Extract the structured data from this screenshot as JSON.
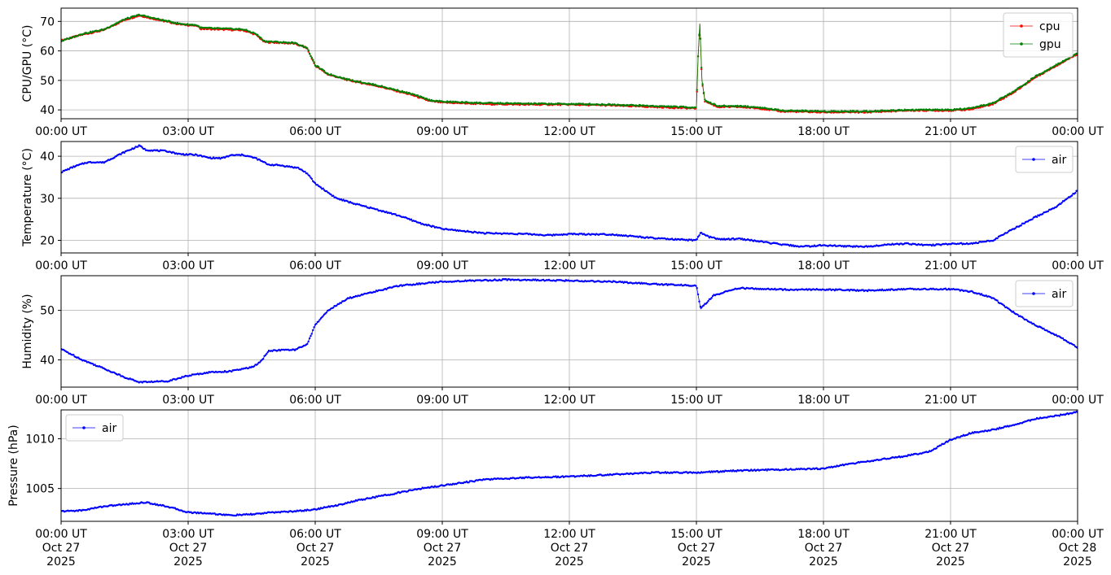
{
  "chart_data": [
    {
      "type": "line",
      "ylabel": "CPU/GPU (°C)",
      "ylim": [
        37,
        74.5
      ],
      "yticks": [
        40,
        50,
        60,
        70
      ],
      "xlim": [
        0,
        24
      ],
      "xticks": [
        0,
        3,
        6,
        9,
        12,
        15,
        18,
        21,
        24
      ],
      "xtick_labels": [
        "00:00 UT",
        "03:00 UT",
        "06:00 UT",
        "09:00 UT",
        "12:00 UT",
        "15:00 UT",
        "18:00 UT",
        "21:00 UT",
        "00:00 UT"
      ],
      "grid": true,
      "legend_position": "upper right",
      "series": [
        {
          "name": "cpu",
          "color": "#ff0000",
          "points": [
            [
              0,
              63.5
            ],
            [
              0.5,
              65.5
            ],
            [
              1,
              67
            ],
            [
              1.5,
              70.5
            ],
            [
              1.85,
              72
            ],
            [
              2.3,
              70.5
            ],
            [
              2.8,
              69
            ],
            [
              3.2,
              68.5
            ],
            [
              3.3,
              67.5
            ],
            [
              4.3,
              67
            ],
            [
              4.6,
              65.5
            ],
            [
              4.8,
              63
            ],
            [
              5.1,
              62.8
            ],
            [
              5.5,
              62.5
            ],
            [
              5.8,
              61
            ],
            [
              6,
              55
            ],
            [
              6.3,
              52
            ],
            [
              6.8,
              50
            ],
            [
              7.5,
              48
            ],
            [
              8.3,
              45
            ],
            [
              8.7,
              43
            ],
            [
              9,
              42.5
            ],
            [
              10,
              42
            ],
            [
              11,
              41.8
            ],
            [
              12,
              41.8
            ],
            [
              13,
              41.5
            ],
            [
              14,
              41
            ],
            [
              15,
              40.5
            ],
            [
              15.04,
              58
            ],
            [
              15.08,
              69
            ],
            [
              15.13,
              50
            ],
            [
              15.2,
              43
            ],
            [
              15.5,
              41
            ],
            [
              16,
              41
            ],
            [
              16.5,
              40.5
            ],
            [
              17,
              39.5
            ],
            [
              18,
              39.2
            ],
            [
              19,
              39.2
            ],
            [
              20,
              39.8
            ],
            [
              21,
              39.8
            ],
            [
              21.5,
              40.2
            ],
            [
              22,
              42
            ],
            [
              22.5,
              46
            ],
            [
              23,
              51
            ],
            [
              23.5,
              55
            ],
            [
              24,
              59
            ]
          ]
        },
        {
          "name": "gpu",
          "color": "#008000",
          "points": [
            [
              0,
              63.3
            ],
            [
              0.5,
              65.8
            ],
            [
              1,
              67.2
            ],
            [
              1.5,
              70.7
            ],
            [
              1.85,
              72.2
            ],
            [
              2.3,
              70.7
            ],
            [
              2.8,
              69.2
            ],
            [
              3.2,
              68.7
            ],
            [
              3.3,
              67.8
            ],
            [
              4.3,
              67.3
            ],
            [
              4.6,
              65.8
            ],
            [
              4.8,
              63.3
            ],
            [
              5.1,
              63
            ],
            [
              5.5,
              62.7
            ],
            [
              5.8,
              61.2
            ],
            [
              6,
              55.2
            ],
            [
              6.3,
              52.2
            ],
            [
              6.8,
              50.2
            ],
            [
              7.5,
              48.2
            ],
            [
              8.3,
              45.3
            ],
            [
              8.7,
              43.3
            ],
            [
              9,
              42.8
            ],
            [
              10,
              42.3
            ],
            [
              11,
              42.1
            ],
            [
              12,
              42
            ],
            [
              13,
              41.8
            ],
            [
              14,
              41.3
            ],
            [
              15,
              40.8
            ],
            [
              15.04,
              58.3
            ],
            [
              15.08,
              69.3
            ],
            [
              15.13,
              50.3
            ],
            [
              15.2,
              43.3
            ],
            [
              15.5,
              41.3
            ],
            [
              16,
              41.3
            ],
            [
              16.5,
              40.8
            ],
            [
              17,
              39.8
            ],
            [
              18,
              39.5
            ],
            [
              19,
              39.5
            ],
            [
              20,
              40
            ],
            [
              21,
              40
            ],
            [
              21.5,
              40.5
            ],
            [
              22,
              42.3
            ],
            [
              22.5,
              46.3
            ],
            [
              23,
              51.3
            ],
            [
              23.5,
              55.3
            ],
            [
              24,
              59.2
            ]
          ]
        }
      ]
    },
    {
      "type": "line",
      "ylabel": "Temperature (°C)",
      "ylim": [
        17,
        43.5
      ],
      "yticks": [
        20,
        30,
        40
      ],
      "xlim": [
        0,
        24
      ],
      "xticks": [
        0,
        3,
        6,
        9,
        12,
        15,
        18,
        21,
        24
      ],
      "xtick_labels": [
        "00:00 UT",
        "03:00 UT",
        "06:00 UT",
        "09:00 UT",
        "12:00 UT",
        "15:00 UT",
        "18:00 UT",
        "21:00 UT",
        "00:00 UT"
      ],
      "grid": true,
      "legend_position": "upper right",
      "series": [
        {
          "name": "air",
          "color": "#0000ff",
          "points": [
            [
              0,
              36.2
            ],
            [
              0.3,
              37.5
            ],
            [
              0.6,
              38.5
            ],
            [
              0.8,
              38.6
            ],
            [
              1,
              38.5
            ],
            [
              1.2,
              39.5
            ],
            [
              1.5,
              41
            ],
            [
              1.85,
              42.5
            ],
            [
              2,
              41.5
            ],
            [
              2.5,
              41.2
            ],
            [
              2.8,
              40.5
            ],
            [
              3.2,
              40.3
            ],
            [
              3.5,
              39.6
            ],
            [
              3.8,
              39.5
            ],
            [
              4,
              40.2
            ],
            [
              4.3,
              40.3
            ],
            [
              4.6,
              39.5
            ],
            [
              4.9,
              38
            ],
            [
              5.2,
              37.8
            ],
            [
              5.6,
              37.2
            ],
            [
              5.8,
              36
            ],
            [
              6,
              33.5
            ],
            [
              6.5,
              30
            ],
            [
              7,
              28.5
            ],
            [
              7.5,
              27.2
            ],
            [
              8,
              25.8
            ],
            [
              8.5,
              24
            ],
            [
              9,
              22.7
            ],
            [
              10,
              21.7
            ],
            [
              11,
              21.5
            ],
            [
              11.5,
              21.2
            ],
            [
              12,
              21.5
            ],
            [
              13,
              21.4
            ],
            [
              14,
              20.5
            ],
            [
              14.5,
              20.2
            ],
            [
              15,
              20
            ],
            [
              15.1,
              21.8
            ],
            [
              15.3,
              20.8
            ],
            [
              15.6,
              20.2
            ],
            [
              16,
              20.4
            ],
            [
              16.3,
              20
            ],
            [
              17,
              19
            ],
            [
              17.5,
              18.5
            ],
            [
              18,
              18.8
            ],
            [
              18.5,
              18.6
            ],
            [
              19,
              18.5
            ],
            [
              19.5,
              19
            ],
            [
              20,
              19.2
            ],
            [
              20.5,
              18.8
            ],
            [
              21,
              19.2
            ],
            [
              21.5,
              19.2
            ],
            [
              22,
              20
            ],
            [
              22.5,
              22.8
            ],
            [
              23,
              25.5
            ],
            [
              23.5,
              28
            ],
            [
              24,
              31.8
            ]
          ]
        }
      ]
    },
    {
      "type": "line",
      "ylabel": "Humidity (%)",
      "ylim": [
        34.5,
        57
      ],
      "yticks": [
        40,
        50
      ],
      "xlim": [
        0,
        24
      ],
      "xticks": [
        0,
        3,
        6,
        9,
        12,
        15,
        18,
        21,
        24
      ],
      "xtick_labels": [
        "00:00 UT",
        "03:00 UT",
        "06:00 UT",
        "09:00 UT",
        "12:00 UT",
        "15:00 UT",
        "18:00 UT",
        "21:00 UT",
        "00:00 UT"
      ],
      "grid": true,
      "legend_position": "upper right",
      "series": [
        {
          "name": "air",
          "color": "#0000ff",
          "points": [
            [
              0,
              42.2
            ],
            [
              0.5,
              40
            ],
            [
              1,
              38.3
            ],
            [
              1.5,
              36.5
            ],
            [
              1.85,
              35.5
            ],
            [
              2.5,
              35.7
            ],
            [
              3,
              36.8
            ],
            [
              3.5,
              37.5
            ],
            [
              4,
              37.7
            ],
            [
              4.5,
              38.5
            ],
            [
              4.7,
              39.5
            ],
            [
              4.9,
              41.8
            ],
            [
              5.2,
              42
            ],
            [
              5.5,
              42
            ],
            [
              5.8,
              43
            ],
            [
              6,
              47
            ],
            [
              6.3,
              50
            ],
            [
              6.8,
              52.5
            ],
            [
              7.5,
              54
            ],
            [
              8,
              55
            ],
            [
              9,
              55.8
            ],
            [
              10.5,
              56.2
            ],
            [
              12,
              56
            ],
            [
              13,
              55.8
            ],
            [
              14,
              55.3
            ],
            [
              15,
              55
            ],
            [
              15.1,
              50.3
            ],
            [
              15.4,
              53
            ],
            [
              16,
              54.5
            ],
            [
              17,
              54.2
            ],
            [
              18,
              54.2
            ],
            [
              19,
              54
            ],
            [
              20,
              54.3
            ],
            [
              21,
              54.3
            ],
            [
              21.5,
              53.8
            ],
            [
              22,
              52.5
            ],
            [
              22.5,
              49.5
            ],
            [
              23,
              47
            ],
            [
              23.5,
              45
            ],
            [
              24,
              42.5
            ]
          ]
        }
      ]
    },
    {
      "type": "line",
      "ylabel": "Pressure (hPa)",
      "ylim": [
        1001.7,
        1012.9
      ],
      "yticks": [
        1005,
        1010
      ],
      "xlim": [
        0,
        24
      ],
      "xticks": [
        0,
        3,
        6,
        9,
        12,
        15,
        18,
        21,
        24
      ],
      "xtick_labels": [
        "00:00 UT\nOct 27\n2025",
        "03:00 UT\nOct 27\n2025",
        "06:00 UT\nOct 27\n2025",
        "09:00 UT\nOct 27\n2025",
        "12:00 UT\nOct 27\n2025",
        "15:00 UT\nOct 27\n2025",
        "18:00 UT\nOct 27\n2025",
        "21:00 UT\nOct 27\n2025",
        "00:00 UT\nOct 28\n2025"
      ],
      "grid": true,
      "legend_position": "upper left",
      "series": [
        {
          "name": "air",
          "color": "#0000ff",
          "points": [
            [
              0,
              1002.7
            ],
            [
              0.5,
              1002.8
            ],
            [
              1,
              1003.2
            ],
            [
              1.5,
              1003.4
            ],
            [
              2,
              1003.6
            ],
            [
              2.5,
              1003.2
            ],
            [
              3,
              1002.6
            ],
            [
              3.5,
              1002.5
            ],
            [
              4,
              1002.3
            ],
            [
              4.5,
              1002.4
            ],
            [
              5,
              1002.6
            ],
            [
              5.5,
              1002.7
            ],
            [
              6,
              1002.9
            ],
            [
              6.5,
              1003.3
            ],
            [
              7,
              1003.8
            ],
            [
              7.5,
              1004.2
            ],
            [
              8,
              1004.6
            ],
            [
              8.5,
              1005
            ],
            [
              9,
              1005.3
            ],
            [
              9.5,
              1005.6
            ],
            [
              10,
              1005.9
            ],
            [
              11,
              1006.1
            ],
            [
              12,
              1006.2
            ],
            [
              13,
              1006.4
            ],
            [
              14,
              1006.6
            ],
            [
              15,
              1006.6
            ],
            [
              16,
              1006.8
            ],
            [
              17,
              1006.9
            ],
            [
              18,
              1007
            ],
            [
              18.5,
              1007.4
            ],
            [
              19,
              1007.7
            ],
            [
              20,
              1008.3
            ],
            [
              20.5,
              1008.7
            ],
            [
              21,
              1009.9
            ],
            [
              21.5,
              1010.6
            ],
            [
              22,
              1010.9
            ],
            [
              22.5,
              1011.4
            ],
            [
              23,
              1012
            ],
            [
              23.5,
              1012.3
            ],
            [
              24,
              1012.7
            ]
          ]
        }
      ]
    }
  ]
}
